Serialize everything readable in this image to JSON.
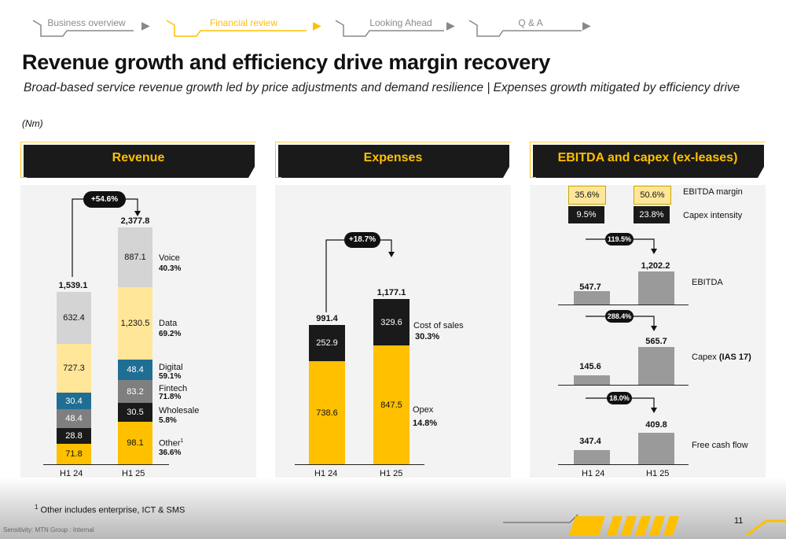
{
  "nav": {
    "tabs": [
      {
        "label": "Business overview",
        "active": false
      },
      {
        "label": "Financial review",
        "active": true
      },
      {
        "label": "Looking Ahead",
        "active": false
      },
      {
        "label": "Q & A",
        "active": false
      }
    ]
  },
  "title": "Revenue growth and efficiency drive margin recovery",
  "subtitle": "Broad-based service revenue growth led by price adjustments and demand resilience | Expenses growth mitigated by efficiency drive",
  "unit": "(Nm)",
  "colors": {
    "brand_yellow": "#ffc000",
    "light_yellow": "#ffe699",
    "dark": "#1a1a1a",
    "grey": "#d4d4d4",
    "mid_grey": "#7f7f7f",
    "dark_grey": "#595959",
    "blue": "#1f6e94",
    "bar_grey": "#9a9a9a"
  },
  "revenue": {
    "header": "Revenue",
    "growth": "+54.6%",
    "h1_24": {
      "label": "H1 24",
      "total": "1,539.1",
      "segments": [
        "632.4",
        "727.3",
        "30.4",
        "48.4",
        "28.8",
        "71.8"
      ]
    },
    "h1_25": {
      "label": "H1 25",
      "total": "2,377.8",
      "segments": [
        "887.1",
        "1,230.5",
        "48.4",
        "83.2",
        "30.5",
        "98.1"
      ]
    },
    "legend": [
      {
        "name": "Voice",
        "pct": "40.3%"
      },
      {
        "name": "Data",
        "pct": "69.2%"
      },
      {
        "name": "Digital",
        "pct": "59.1%"
      },
      {
        "name": "Fintech",
        "pct": "71.8%"
      },
      {
        "name": "Wholesale",
        "pct": "5.8%"
      },
      {
        "name": "Other",
        "sup": "1",
        "pct": "36.6%"
      }
    ]
  },
  "expenses": {
    "header": "Expenses",
    "growth": "+18.7%",
    "h1_24": {
      "label": "H1 24",
      "total": "991.4",
      "cost_of_sales": "252.9",
      "opex": "738.6"
    },
    "h1_25": {
      "label": "H1 25",
      "total": "1,177.1",
      "cost_of_sales": "329.6",
      "opex": "847.5"
    },
    "legend": {
      "cost_of_sales": "Cost of sales",
      "cos_pct": "30.3%",
      "opex": "Opex",
      "opex_pct": "14.8%"
    }
  },
  "ebitda": {
    "header": "EBITDA and capex (ex-leases)",
    "margin_h1_24": "35.6%",
    "margin_h1_25": "50.6%",
    "margin_label": "EBITDA margin",
    "capex_int_h1_24": "9.5%",
    "capex_int_h1_25": "23.8%",
    "capex_int_label": "Capex intensity",
    "rows": [
      {
        "name": "EBITDA",
        "bold": "",
        "growth": "119.5%",
        "v24": "547.7",
        "v25": "1,202.2"
      },
      {
        "name": "Capex ",
        "bold": "(IAS 17)",
        "growth": "288.4%",
        "v24": "145.6",
        "v25": "565.7"
      },
      {
        "name": "Free cash flow",
        "bold": "",
        "growth": "18.0%",
        "v24": "347.4",
        "v25": "409.8"
      }
    ],
    "axis": [
      "H1 24",
      "H1 25"
    ]
  },
  "footnote": {
    "sup": "1",
    "text": " Other includes enterprise, ICT &  SMS"
  },
  "page_number": "11",
  "classification": "Sensitivity: MTN Group : Internal"
}
